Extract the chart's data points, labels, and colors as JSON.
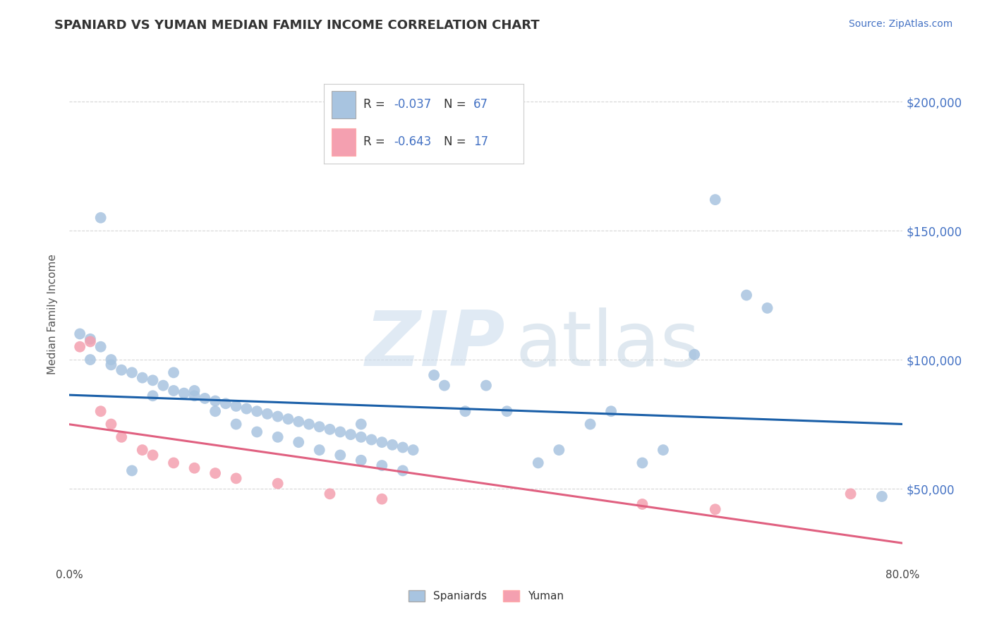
{
  "title": "SPANIARD VS YUMAN MEDIAN FAMILY INCOME CORRELATION CHART",
  "source": "Source: ZipAtlas.com",
  "ylabel": "Median Family Income",
  "xlim": [
    0.0,
    0.8
  ],
  "ylim": [
    20000,
    215000
  ],
  "yticks": [
    50000,
    100000,
    150000,
    200000
  ],
  "spaniards_x": [
    0.01,
    0.02,
    0.02,
    0.03,
    0.03,
    0.04,
    0.04,
    0.05,
    0.06,
    0.07,
    0.08,
    0.09,
    0.1,
    0.11,
    0.12,
    0.13,
    0.14,
    0.15,
    0.16,
    0.17,
    0.18,
    0.19,
    0.2,
    0.21,
    0.22,
    0.23,
    0.24,
    0.25,
    0.26,
    0.27,
    0.28,
    0.29,
    0.3,
    0.31,
    0.32,
    0.33,
    0.35,
    0.36,
    0.38,
    0.4,
    0.42,
    0.45,
    0.47,
    0.5,
    0.52,
    0.55,
    0.57,
    0.6,
    0.62,
    0.65,
    0.67,
    0.28,
    0.06,
    0.08,
    0.1,
    0.12,
    0.14,
    0.16,
    0.18,
    0.2,
    0.22,
    0.24,
    0.26,
    0.28,
    0.3,
    0.32,
    0.78
  ],
  "spaniards_y": [
    110000,
    108000,
    100000,
    155000,
    105000,
    100000,
    98000,
    96000,
    95000,
    93000,
    92000,
    90000,
    88000,
    87000,
    86000,
    85000,
    84000,
    83000,
    82000,
    81000,
    80000,
    79000,
    78000,
    77000,
    76000,
    75000,
    74000,
    73000,
    72000,
    71000,
    70000,
    69000,
    68000,
    67000,
    66000,
    65000,
    94000,
    90000,
    80000,
    90000,
    80000,
    60000,
    65000,
    75000,
    80000,
    60000,
    65000,
    102000,
    162000,
    125000,
    120000,
    75000,
    57000,
    86000,
    95000,
    88000,
    80000,
    75000,
    72000,
    70000,
    68000,
    65000,
    63000,
    61000,
    59000,
    57000,
    47000
  ],
  "yuman_x": [
    0.01,
    0.02,
    0.03,
    0.04,
    0.05,
    0.07,
    0.08,
    0.1,
    0.12,
    0.14,
    0.16,
    0.2,
    0.25,
    0.3,
    0.55,
    0.62,
    0.75
  ],
  "yuman_y": [
    105000,
    107000,
    80000,
    75000,
    70000,
    65000,
    63000,
    60000,
    58000,
    56000,
    54000,
    52000,
    48000,
    46000,
    44000,
    42000,
    48000
  ],
  "spaniards_color": "#a8c4e0",
  "yuman_color": "#f4a0b0",
  "spaniards_line_color": "#1a5fa8",
  "yuman_line_color": "#e06080",
  "spaniards_r": -0.037,
  "spaniards_n": 67,
  "yuman_r": -0.643,
  "yuman_n": 17,
  "title_color": "#333333",
  "axis_label_color": "#4472c4",
  "background_color": "#ffffff",
  "grid_color": "#cccccc"
}
